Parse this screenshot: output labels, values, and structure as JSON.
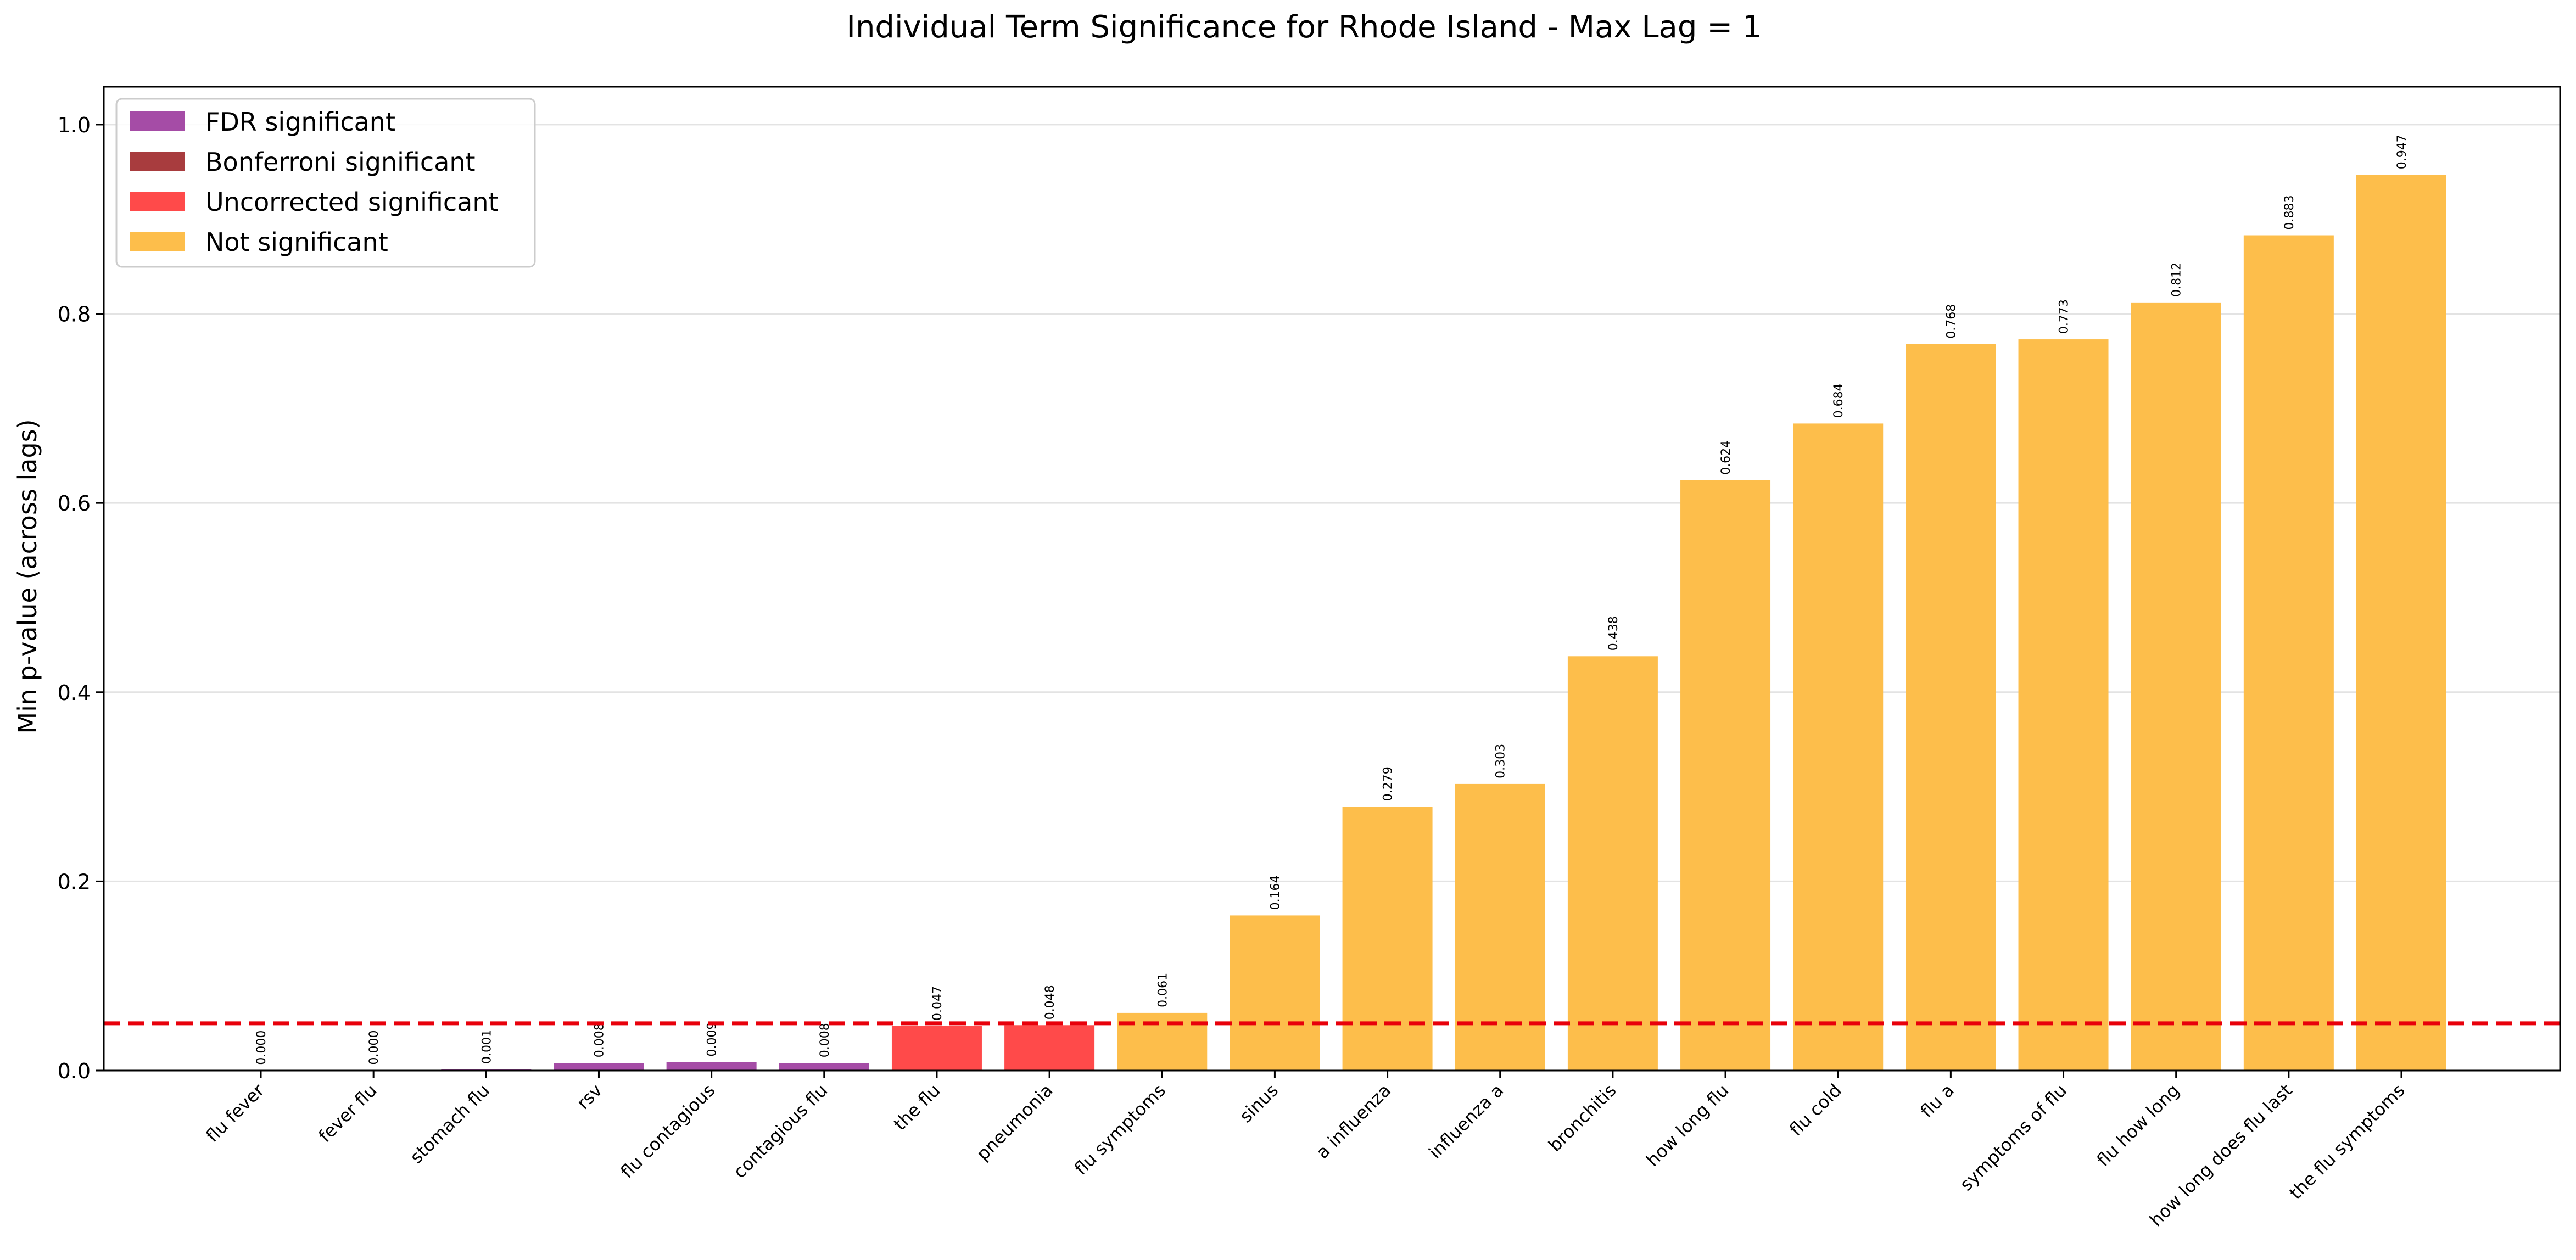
{
  "chart_data": {
    "type": "bar",
    "title": "Individual Term Significance for Rhode Island - Max Lag = 1",
    "xlabel": "",
    "ylabel": "Min p-value (across lags)",
    "ylim": [
      0,
      1.04
    ],
    "yticks": [
      0.0,
      0.2,
      0.4,
      0.6,
      0.8,
      1.0
    ],
    "ytick_labels": [
      "0.0",
      "0.2",
      "0.4",
      "0.6",
      "0.8",
      "1.0"
    ],
    "grid": "y",
    "threshold": {
      "value": 0.05,
      "color": "#e8000b",
      "style": "dashed"
    },
    "legend_position": "top-left",
    "legend": [
      {
        "label": "FDR significant",
        "color": "#a54ca6"
      },
      {
        "label": "Bonferroni significant",
        "color": "#a83c3e"
      },
      {
        "label": "Uncorrected significant",
        "color": "#ff4a4a"
      },
      {
        "label": "Not significant",
        "color": "#fdbe4b"
      }
    ],
    "categories": [
      "flu fever",
      "fever flu",
      "stomach flu",
      "rsv",
      "flu contagious",
      "contagious flu",
      "the flu",
      "pneumonia",
      "flu symptoms",
      "sinus",
      "a influenza",
      "influenza a",
      "bronchitis",
      "how long flu",
      "flu cold",
      "flu a",
      "symptoms of flu",
      "flu how long",
      "how long does flu last",
      "the flu symptoms"
    ],
    "values": [
      0.0002,
      0.0003,
      0.0012,
      0.008,
      0.009,
      0.008,
      0.047,
      0.048,
      0.061,
      0.164,
      0.279,
      0.303,
      0.438,
      0.624,
      0.684,
      0.768,
      0.773,
      0.812,
      0.883,
      0.947
    ],
    "value_labels": [
      "0.000",
      "0.000",
      "0.001",
      "0.008",
      "0.009",
      "0.008",
      "0.047",
      "0.048",
      "0.061",
      "0.164",
      "0.279",
      "0.303",
      "0.438",
      "0.624",
      "0.684",
      "0.768",
      "0.773",
      "0.812",
      "0.883",
      "0.947"
    ],
    "significance": [
      "fdr",
      "fdr",
      "fdr",
      "fdr",
      "fdr",
      "fdr",
      "uncorrected",
      "uncorrected",
      "none",
      "none",
      "none",
      "none",
      "none",
      "none",
      "none",
      "none",
      "none",
      "none",
      "none",
      "none"
    ],
    "colors": {
      "fdr": "#a54ca6",
      "bonferroni": "#a83c3e",
      "uncorrected": "#ff4a4a",
      "none": "#fdbe4b"
    }
  }
}
